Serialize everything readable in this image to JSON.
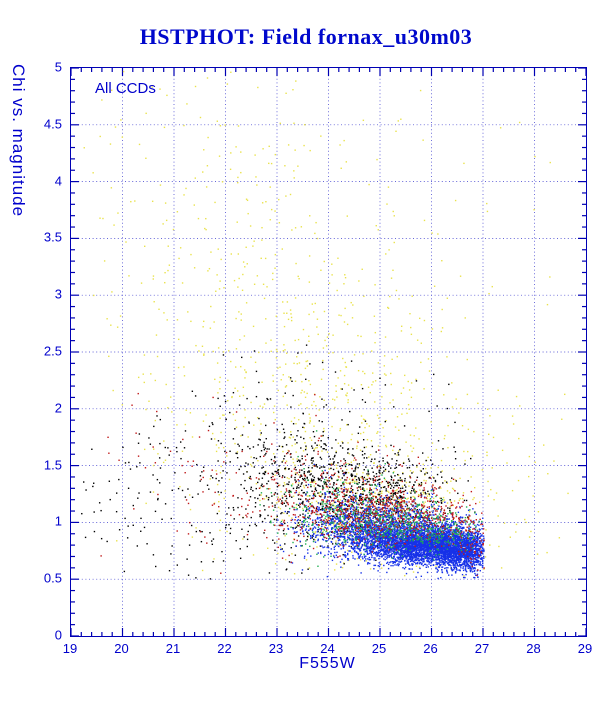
{
  "page_title": "HSTPHOT: Field fornax_u30m03",
  "colors": {
    "title": "#0008cc",
    "axis_frame": "#0000b4",
    "axis_text": "#0000cc",
    "grid": "#3333cc",
    "background": "#ffffff"
  },
  "chart_data": {
    "type": "scatter",
    "title": "HSTPHOT: Field fornax_u30m03",
    "annotation": "All CCDs",
    "xlabel": "F555W",
    "ylabel": "Chi vs. magnitude",
    "xlim": [
      19,
      29
    ],
    "ylim": [
      0,
      5
    ],
    "grid": true,
    "grid_style": "dotted",
    "legend": "none",
    "x_ticks": [
      "19",
      "20",
      "21",
      "22",
      "23",
      "24",
      "25",
      "26",
      "27",
      "28",
      "29"
    ],
    "y_ticks": [
      "0",
      "0.5",
      "1",
      "1.5",
      "2",
      "2.5",
      "3",
      "3.5",
      "4",
      "4.5",
      "5"
    ],
    "x_minor_step": 0.2,
    "y_minor_step": 0.1,
    "marker_size_px": 1.4,
    "series": [
      {
        "name": "yellow",
        "color": "#e9e24c",
        "xmin": 19.1,
        "xmax": 28.7,
        "ymin": 0.5,
        "ymax": 4.97,
        "clusters": [
          {
            "n": 520,
            "cx": 25.0,
            "cy": 1.15,
            "sx": 1.1,
            "sy": 0.28
          },
          {
            "n": 350,
            "cx": 23.8,
            "cy": 1.9,
            "sx": 1.5,
            "sy": 0.55
          },
          {
            "n": 260,
            "cx": 23.0,
            "cy": 2.9,
            "sx": 1.7,
            "sy": 0.85
          },
          {
            "n": 80,
            "cx": 21.8,
            "cy": 4.2,
            "sx": 1.5,
            "sy": 0.55
          },
          {
            "n": 70,
            "cx": 23.9,
            "cy": 3.2,
            "sx": 4.5,
            "sy": 1.7,
            "dist": "uniform"
          },
          {
            "n": 25,
            "cx": 27.9,
            "cy": 1.3,
            "sx": 0.5,
            "sy": 0.5
          }
        ]
      },
      {
        "name": "black",
        "color": "#000000",
        "xmin": 19.15,
        "xmax": 26.95,
        "ymin": 0.5,
        "ymax": 2.6,
        "clusters": [
          {
            "n": 560,
            "cx": 24.4,
            "cy": 1.28,
            "sx": 0.85,
            "sy": 0.22
          },
          {
            "n": 300,
            "cx": 23.3,
            "cy": 1.35,
            "sx": 1.0,
            "sy": 0.35
          },
          {
            "n": 200,
            "cx": 25.3,
            "cy": 1.15,
            "sx": 0.7,
            "sy": 0.18
          },
          {
            "n": 120,
            "cx": 21.6,
            "cy": 1.25,
            "sx": 1.1,
            "sy": 0.45
          },
          {
            "n": 55,
            "cx": 23.5,
            "cy": 2.05,
            "sx": 1.3,
            "sy": 0.45
          },
          {
            "n": 25,
            "cx": 20.0,
            "cy": 1.05,
            "sx": 0.6,
            "sy": 0.3
          }
        ]
      },
      {
        "name": "blue",
        "color": "#1732e8",
        "xmin": 23.0,
        "xmax": 27.02,
        "ymin": 0.5,
        "ymax": 1.6,
        "clusters": [
          {
            "n": 3000,
            "cx": 25.9,
            "cy": 0.8,
            "sx": 0.62,
            "sy": 0.085
          },
          {
            "n": 1400,
            "cx": 25.2,
            "cy": 0.92,
            "sx": 0.75,
            "sy": 0.12
          },
          {
            "n": 900,
            "cx": 26.5,
            "cy": 0.74,
            "sx": 0.3,
            "sy": 0.09
          },
          {
            "n": 350,
            "cx": 24.3,
            "cy": 1.0,
            "sx": 0.6,
            "sy": 0.15
          },
          {
            "n": 150,
            "cx": 26.8,
            "cy": 0.7,
            "sx": 0.12,
            "sy": 0.1
          }
        ]
      },
      {
        "name": "green",
        "color": "#1fae4f",
        "xmin": 22.5,
        "xmax": 27.0,
        "ymin": 0.5,
        "ymax": 2.0,
        "clusters": [
          {
            "n": 390,
            "cx": 25.3,
            "cy": 0.98,
            "sx": 0.75,
            "sy": 0.11
          },
          {
            "n": 200,
            "cx": 24.4,
            "cy": 1.08,
            "sx": 0.7,
            "sy": 0.16
          },
          {
            "n": 120,
            "cx": 26.2,
            "cy": 0.9,
            "sx": 0.4,
            "sy": 0.1
          },
          {
            "n": 40,
            "cx": 23.3,
            "cy": 1.2,
            "sx": 0.8,
            "sy": 0.3
          }
        ]
      },
      {
        "name": "red",
        "color": "#c01818",
        "xmin": 19.2,
        "xmax": 27.05,
        "ymin": 0.5,
        "ymax": 2.4,
        "clusters": [
          {
            "n": 430,
            "cx": 24.9,
            "cy": 1.12,
            "sx": 0.75,
            "sy": 0.14
          },
          {
            "n": 220,
            "cx": 23.9,
            "cy": 1.22,
            "sx": 0.8,
            "sy": 0.22
          },
          {
            "n": 120,
            "cx": 26.0,
            "cy": 1.0,
            "sx": 0.5,
            "sy": 0.12
          },
          {
            "n": 90,
            "cx": 26.82,
            "cy": 0.85,
            "sx": 0.18,
            "sy": 0.13
          },
          {
            "n": 60,
            "cx": 22.3,
            "cy": 1.25,
            "sx": 1.1,
            "sy": 0.4
          },
          {
            "n": 15,
            "cx": 20.3,
            "cy": 1.4,
            "sx": 0.8,
            "sy": 0.5
          }
        ]
      }
    ]
  }
}
